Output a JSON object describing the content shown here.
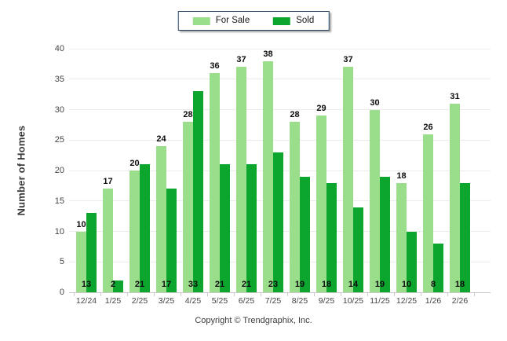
{
  "chart_data": {
    "type": "bar",
    "title": "",
    "categories": [
      "12/24",
      "1/25",
      "2/25",
      "3/25",
      "4/25",
      "5/25",
      "6/25",
      "7/25",
      "8/25",
      "9/25",
      "10/25",
      "11/25",
      "12/25",
      "1/26",
      "2/26"
    ],
    "series": [
      {
        "name": "For Sale",
        "color": "#9ADE8C",
        "values": [
          10,
          17,
          20,
          24,
          28,
          36,
          37,
          38,
          28,
          29,
          37,
          30,
          18,
          26,
          31
        ]
      },
      {
        "name": "Sold",
        "color": "#0CA52E",
        "values": [
          13,
          2,
          21,
          17,
          33,
          21,
          21,
          23,
          19,
          18,
          14,
          19,
          10,
          8,
          18
        ]
      }
    ],
    "xlabel": "",
    "ylabel": "Number of Homes",
    "ylim": [
      0,
      40
    ],
    "ytick_interval": 5,
    "grid": true,
    "legend_position": "top-center",
    "legend_border_color": "#24425F",
    "value_labels": {
      "for_sale": "above-bar",
      "sold": "at-baseline"
    },
    "footer": "Copyright © Trendgraphix, Inc."
  }
}
